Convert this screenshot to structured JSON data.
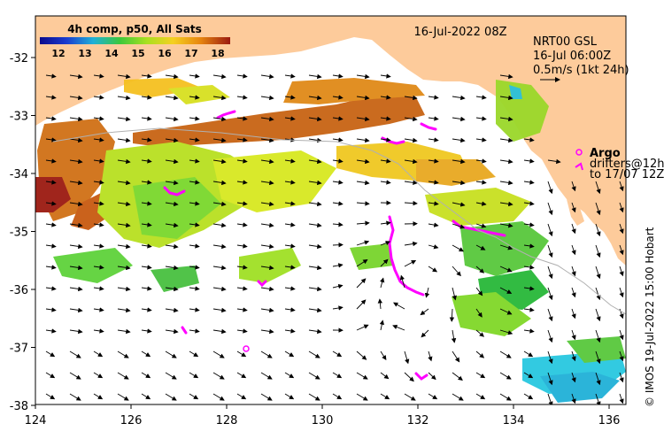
{
  "colorbar": {
    "title": "4h comp, p50, All Sats",
    "ticks": [
      "12",
      "13",
      "14",
      "15",
      "16",
      "17",
      "18"
    ]
  },
  "timestamp": "16-Jul-2022 08Z",
  "current_legend": {
    "line1": "NRT00 GSL",
    "line2": "16-Jul 06:00Z",
    "line3": "0.5m/s (1kt 24h)"
  },
  "argo_legend": {
    "argo": "Argo",
    "drifters_line1": "drifters@12h",
    "drifters_line2": "to 17/07 12Z"
  },
  "axes": {
    "x_ticks": [
      "124",
      "126",
      "128",
      "130",
      "132",
      "134",
      "136"
    ],
    "y_ticks": [
      "-32",
      "-33",
      "-34",
      "-35",
      "-36",
      "-37",
      "-38"
    ]
  },
  "credit": "© IMOS 19-Jul-2022 15:00 Hobart",
  "colors": {
    "land": "#fdcb9b",
    "sea_white": "#ffffff",
    "argo": "#ff00ff",
    "arrow": "#000000"
  }
}
